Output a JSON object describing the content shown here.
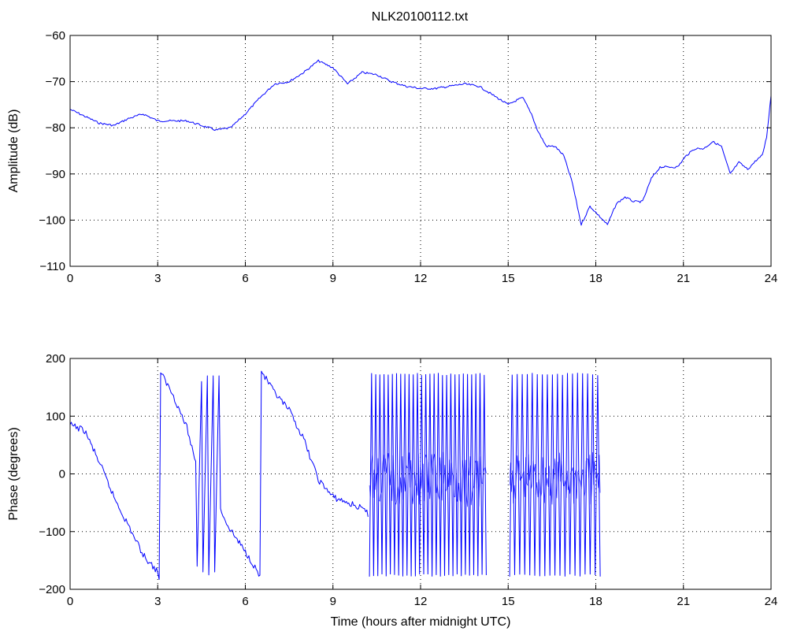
{
  "figure": {
    "title": "NLK20100112.txt"
  },
  "chart_data": [
    {
      "type": "line",
      "title": "NLK20100112.txt",
      "xlabel": "",
      "ylabel": "Amplitude (dB)",
      "xlim": [
        0,
        24
      ],
      "ylim": [
        -110,
        -60
      ],
      "x_ticks": [
        0,
        3,
        6,
        9,
        12,
        15,
        18,
        21,
        24
      ],
      "y_ticks": [
        -60,
        -70,
        -80,
        -90,
        -100,
        -110
      ],
      "x_tick_labels": [
        "0",
        "3",
        "6",
        "9",
        "12",
        "15",
        "18",
        "21",
        "24"
      ],
      "y_tick_labels": [
        "−60",
        "−70",
        "−80",
        "−90",
        "−100",
        "−110"
      ],
      "grid": true,
      "grid_style": "dotted",
      "series": [
        {
          "color": "#0000ff",
          "x": [
            0,
            0.5,
            1,
            1.5,
            2,
            2.5,
            3,
            3.5,
            4,
            4.5,
            5,
            5.5,
            6,
            6.5,
            7,
            7.5,
            8,
            8.5,
            9,
            9.5,
            10,
            10.5,
            11,
            11.5,
            12,
            12.5,
            13,
            13.5,
            14,
            14.5,
            15,
            15.3,
            15.5,
            15.8,
            16,
            16.3,
            16.6,
            16.9,
            17.2,
            17.5,
            17.8,
            18.1,
            18.4,
            18.7,
            19,
            19.3,
            19.6,
            19.9,
            20.2,
            20.5,
            20.8,
            21.1,
            21.4,
            21.7,
            22,
            22.3,
            22.6,
            22.9,
            23.2,
            23.5,
            23.7,
            23.85,
            24
          ],
          "values": [
            -76,
            -77.5,
            -79,
            -79.5,
            -78,
            -77,
            -78.5,
            -78.5,
            -78.5,
            -79.5,
            -80.5,
            -80,
            -77,
            -73.5,
            -70.5,
            -70,
            -68,
            -65.5,
            -67,
            -70.5,
            -68,
            -68.5,
            -70,
            -71,
            -71.5,
            -71.5,
            -71,
            -70.5,
            -71,
            -73,
            -75,
            -74,
            -73.5,
            -77,
            -80.5,
            -84,
            -84,
            -86,
            -92,
            -101,
            -97,
            -99,
            -101,
            -96.5,
            -95,
            -96,
            -96,
            -91,
            -88.5,
            -88.5,
            -88.5,
            -86,
            -84.5,
            -84.5,
            -83,
            -84,
            -90,
            -87.5,
            -89,
            -87,
            -86,
            -82,
            -73
          ]
        }
      ]
    },
    {
      "type": "line",
      "title": "",
      "xlabel": "Time (hours after midnight UTC)",
      "ylabel": "Phase (degrees)",
      "xlim": [
        0,
        24
      ],
      "ylim": [
        -200,
        200
      ],
      "x_ticks": [
        0,
        3,
        6,
        9,
        12,
        15,
        18,
        21,
        24
      ],
      "y_ticks": [
        200,
        100,
        0,
        -100,
        -200
      ],
      "x_tick_labels": [
        "0",
        "3",
        "6",
        "9",
        "12",
        "15",
        "18",
        "21",
        "24"
      ],
      "y_tick_labels": [
        "200",
        "100",
        "0",
        "−100",
        "−200"
      ],
      "grid": true,
      "grid_style": "dotted",
      "series": [
        {
          "color": "#0000ff",
          "x": [
            0,
            0.5,
            1,
            1.5,
            2,
            2.5,
            3,
            3.05,
            3.1,
            3.5,
            4,
            4.3,
            4.35,
            4.5,
            4.55,
            4.7,
            4.75,
            4.9,
            4.95,
            5.1,
            5.15,
            5.4,
            5.8,
            6.2,
            6.5,
            6.55,
            7,
            7.5,
            8,
            8.5,
            9,
            9.5,
            10,
            10.2
          ],
          "values": [
            85,
            75,
            20,
            -40,
            -90,
            -140,
            -170,
            -180,
            175,
            140,
            80,
            20,
            -160,
            160,
            -170,
            170,
            -175,
            170,
            -170,
            170,
            -60,
            -90,
            -120,
            -150,
            -178,
            178,
            140,
            110,
            60,
            -10,
            -40,
            -50,
            -60,
            -70
          ]
        }
      ],
      "shaded_oscillation_bands": [
        {
          "x_range": [
            10.25,
            14.25
          ],
          "y_range": [
            -178,
            175
          ],
          "cycles": 28
        },
        {
          "x_range": [
            15.05,
            18.15
          ],
          "y_range": [
            -178,
            175
          ],
          "cycles": 18
        }
      ]
    }
  ]
}
